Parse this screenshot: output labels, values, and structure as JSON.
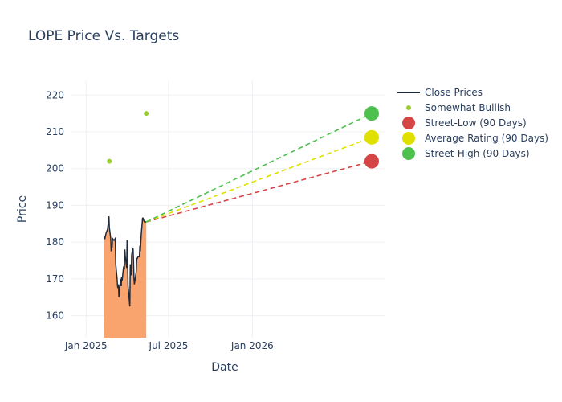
{
  "chart_data": {
    "type": "line",
    "title": "LOPE Price Vs. Targets",
    "xlabel": "Date",
    "ylabel": "Price",
    "x_range": [
      "2024-11-28",
      "2026-10-20"
    ],
    "ylim": [
      154,
      224
    ],
    "x_ticks": [
      {
        "date": "2025-01-01",
        "label": "Jan 2025"
      },
      {
        "date": "2025-07-01",
        "label": "Jul 2025"
      },
      {
        "date": "2026-01-01",
        "label": "Jan 2026"
      }
    ],
    "y_ticks": [
      160,
      170,
      180,
      190,
      200,
      210,
      220
    ],
    "grid": true,
    "legend_position": "top-right",
    "close_prices": {
      "name": "Close Prices",
      "color": "#1f2a3a",
      "fill_color": "#f9a46e",
      "x": [
        "2025-02-10",
        "2025-02-11",
        "2025-02-12",
        "2025-02-13",
        "2025-02-14",
        "2025-02-17",
        "2025-02-18",
        "2025-02-19",
        "2025-02-20",
        "2025-02-21",
        "2025-02-24",
        "2025-02-25",
        "2025-02-26",
        "2025-02-27",
        "2025-02-28",
        "2025-03-03",
        "2025-03-04",
        "2025-03-05",
        "2025-03-06",
        "2025-03-07",
        "2025-03-10",
        "2025-03-11",
        "2025-03-12",
        "2025-03-13",
        "2025-03-14",
        "2025-03-17",
        "2025-03-18",
        "2025-03-19",
        "2025-03-20",
        "2025-03-21",
        "2025-03-24",
        "2025-03-25",
        "2025-03-26",
        "2025-03-27",
        "2025-03-28",
        "2025-03-31",
        "2025-04-01",
        "2025-04-02",
        "2025-04-03",
        "2025-04-04",
        "2025-04-07",
        "2025-04-08",
        "2025-04-09",
        "2025-04-10",
        "2025-04-11",
        "2025-04-14",
        "2025-04-15",
        "2025-04-16",
        "2025-04-17",
        "2025-04-21",
        "2025-04-22",
        "2025-04-23",
        "2025-04-24",
        "2025-04-25",
        "2025-04-28",
        "2025-04-29",
        "2025-04-30",
        "2025-05-01",
        "2025-05-02",
        "2025-05-05",
        "2025-05-06",
        "2025-05-07",
        "2025-05-08",
        "2025-05-09",
        "2025-05-12",
        "2025-05-13"
      ],
      "y": [
        181.5,
        180.8,
        181.5,
        182.0,
        182.5,
        183.5,
        184.5,
        185.0,
        187.0,
        184.0,
        181.0,
        177.5,
        179.0,
        178.5,
        181.0,
        180.5,
        180.5,
        180.8,
        181.0,
        174.0,
        170.0,
        168.0,
        167.5,
        168.5,
        165.0,
        169.0,
        170.0,
        168.0,
        170.5,
        169.5,
        173.0,
        173.5,
        172.5,
        178.0,
        176.0,
        173.0,
        180.5,
        176.0,
        168.0,
        167.0,
        162.5,
        174.0,
        172.0,
        171.0,
        176.5,
        178.5,
        175.0,
        170.0,
        168.5,
        172.0,
        175.5,
        175.5,
        175.8,
        176.0,
        176.0,
        179.0,
        177.5,
        180.0,
        182.0,
        186.5,
        186.5,
        186.0,
        185.8,
        185.5,
        185.5,
        185.5
      ]
    },
    "somewhat_bullish": {
      "name": "Somewhat Bullish",
      "color": "#9acd32",
      "points": [
        {
          "x": "2025-02-21",
          "y": 202
        },
        {
          "x": "2025-05-13",
          "y": 215
        }
      ]
    },
    "targets": {
      "start": {
        "x": "2025-05-13",
        "y": 185.5
      },
      "end_date": "2026-09-20",
      "series": [
        {
          "name": "Street-Low (90 Days)",
          "color": "#d64545",
          "value": 202
        },
        {
          "name": "Average Rating (90 Days)",
          "color": "#e0e000",
          "value": 208.5
        },
        {
          "name": "Street-High (90 Days)",
          "color": "#4dc04d",
          "value": 215
        }
      ]
    },
    "legend": [
      {
        "name": "Close Prices",
        "kind": "line",
        "color": "#1f2a3a"
      },
      {
        "name": "Somewhat Bullish",
        "kind": "small-dot",
        "color": "#9acd32"
      },
      {
        "name": "Street-Low (90 Days)",
        "kind": "big-dot",
        "color": "#d64545"
      },
      {
        "name": "Average Rating (90 Days)",
        "kind": "big-dot",
        "color": "#e0e000"
      },
      {
        "name": "Street-High (90 Days)",
        "kind": "big-dot",
        "color": "#4dc04d"
      }
    ]
  }
}
